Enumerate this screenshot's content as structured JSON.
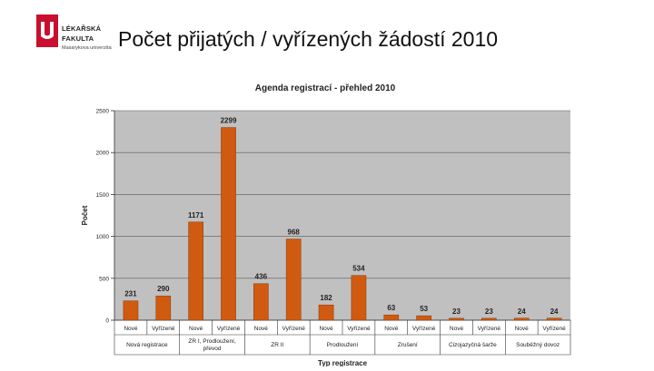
{
  "header": {
    "logo_line1": "LÉKAŘSKÁ",
    "logo_line2": "FAKULTA",
    "logo_line3": "Masarykova univerzita",
    "title": "Počet přijatých / vyřízených žádostí 2010"
  },
  "colors": {
    "bar": "#d05a10",
    "plot_bg": "#c0c0c0",
    "brand": "#c8102e"
  },
  "chart_data": {
    "type": "bar",
    "title": "Agenda registrací - přehled 2010",
    "ylabel": "Počet",
    "xlabel": "Typ registrace",
    "ylim": [
      0,
      2500
    ],
    "yticks": [
      0,
      500,
      1000,
      1500,
      2000,
      2500
    ],
    "grid": true,
    "categories": [
      "Nové",
      "Vyřízené",
      "Nové",
      "Vyřízené",
      "Nové",
      "Vyřízené",
      "Nové",
      "Vyřízené",
      "Nové",
      "Vyřízené",
      "Nové",
      "Vyřízené",
      "Nové",
      "Vyřízené"
    ],
    "groups": [
      "Nová registrace",
      "ZR I, Prodloužení, převod",
      "ZR II",
      "Prodloužení",
      "Zrušení",
      "Cizojazyčná šarže",
      "Souběžný dovoz"
    ],
    "values": [
      231,
      290,
      1171,
      2299,
      436,
      968,
      182,
      534,
      63,
      53,
      23,
      23,
      24,
      24
    ]
  }
}
